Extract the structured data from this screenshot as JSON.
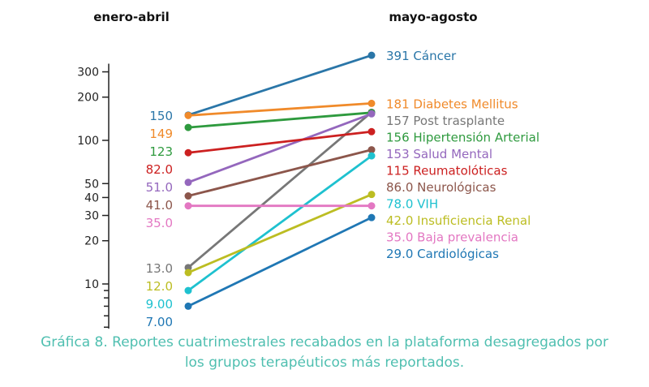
{
  "chart_data": {
    "type": "line",
    "subtype": "slope",
    "y_scale": "log",
    "x": [
      "enero-abril",
      "mayo-agosto"
    ],
    "y_ticks": [
      {
        "value": 300,
        "label": "300"
      },
      {
        "value": 200,
        "label": "200"
      },
      {
        "value": 100,
        "label": "100"
      },
      {
        "value": 50,
        "label": "50"
      },
      {
        "value": 40,
        "label": "40"
      },
      {
        "value": 30,
        "label": "30"
      },
      {
        "value": 20,
        "label": "20"
      },
      {
        "value": 10,
        "label": "10"
      }
    ],
    "y_minor_ticks": [
      9,
      8,
      7,
      6,
      5,
      4,
      3
    ],
    "series": [
      {
        "name": "Cáncer",
        "values": [
          150,
          391
        ],
        "left_label": "150",
        "right_label": "391 Cáncer",
        "color": "#2a76a8"
      },
      {
        "name": "Diabetes Mellitus",
        "values": [
          149,
          181
        ],
        "left_label": "149",
        "right_label": "181 Diabetes Mellitus",
        "color": "#f08a2a"
      },
      {
        "name": "Post trasplante",
        "values": [
          13,
          157
        ],
        "left_label": "13.0",
        "right_label": "157 Post trasplante",
        "color": "#777777"
      },
      {
        "name": "Hipertensión Arterial",
        "values": [
          123,
          156
        ],
        "left_label": "123",
        "right_label": "156 Hipertensión Arterial",
        "color": "#2e9a3e"
      },
      {
        "name": "Salud Mental",
        "values": [
          51,
          153
        ],
        "left_label": "51.0",
        "right_label": "153 Salud Mental",
        "color": "#9467bd"
      },
      {
        "name": "Reumatolóticas",
        "values": [
          82,
          115
        ],
        "left_label": "82.0",
        "right_label": "115 Reumatolóticas",
        "color": "#cc2020"
      },
      {
        "name": "Neurológicas",
        "values": [
          41,
          86
        ],
        "left_label": "41.0",
        "right_label": "86.0 Neurológicas",
        "color": "#8c564b"
      },
      {
        "name": "VIH",
        "values": [
          9,
          78
        ],
        "left_label": "9.00",
        "right_label": "78.0 VIH",
        "color": "#1ec1cf"
      },
      {
        "name": "Insuficiencia Renal",
        "values": [
          12,
          42
        ],
        "left_label": "12.0",
        "right_label": "42.0 Insuficiencia Renal",
        "color": "#bcbd22"
      },
      {
        "name": "Baja prevalencia",
        "values": [
          35,
          35
        ],
        "left_label": "35.0",
        "right_label": "35.0 Baja prevalencia",
        "color": "#e377c2"
      },
      {
        "name": "Cardiológicas",
        "values": [
          7,
          29
        ],
        "left_label": "7.00",
        "right_label": "29.0 Cardiológicas",
        "color": "#1f77b4"
      }
    ]
  },
  "caption": {
    "line1": "Gráfica 8. Reportes cuatrimestrales recabados en la plataforma desagregados por",
    "line2": "los grupos terapéuticos más reportados."
  }
}
